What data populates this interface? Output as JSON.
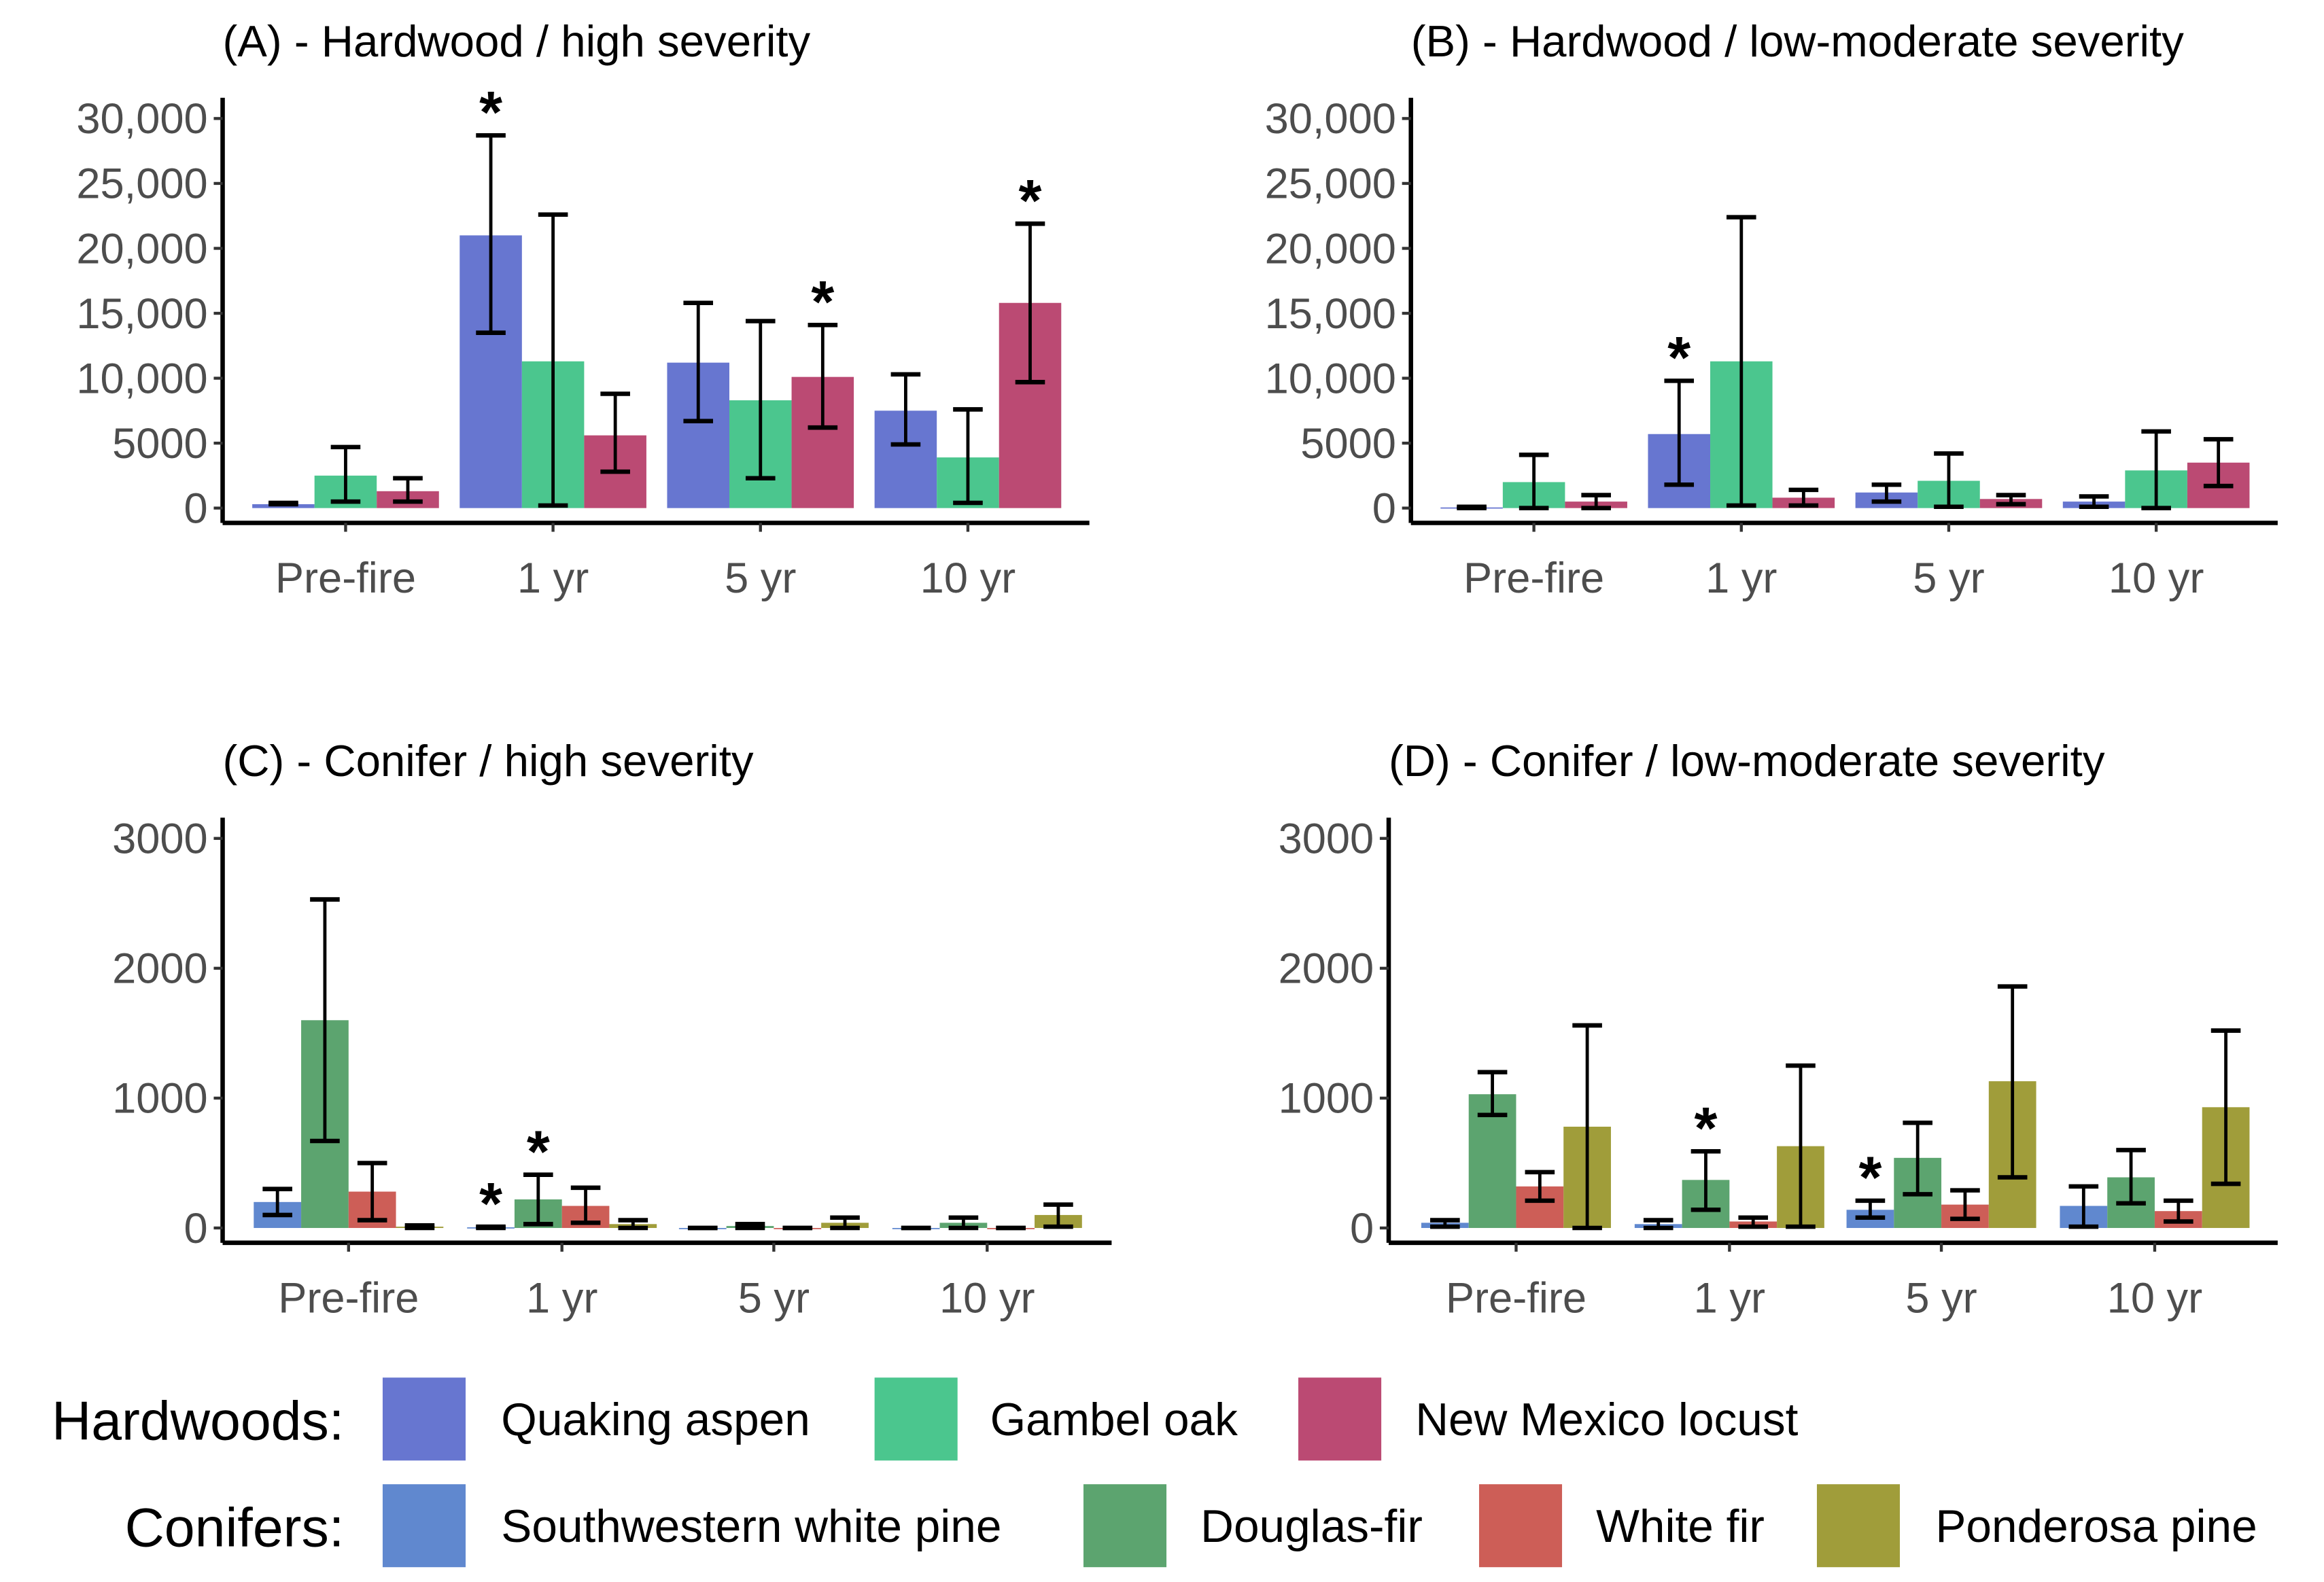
{
  "chart_data": [
    {
      "type": "bar",
      "title": "(A) - Hardwood / high severity",
      "categories": [
        "Pre-fire",
        "1 yr",
        "5 yr",
        "10 yr"
      ],
      "ylim": [
        0,
        30000
      ],
      "yticks": [
        0,
        5000,
        10000,
        15000,
        20000,
        25000,
        30000
      ],
      "ytick_labels": [
        "0",
        "5000",
        "10,000",
        "15,000",
        "20,000",
        "25,000",
        "30,000"
      ],
      "series": [
        {
          "name": "Quaking aspen",
          "values": [
            300,
            21000,
            11200,
            7500
          ],
          "err_low": [
            300,
            13500,
            6700,
            4900
          ],
          "err_high": [
            400,
            28700,
            15800,
            10300
          ],
          "signif": [
            false,
            true,
            false,
            false
          ]
        },
        {
          "name": "Gambel oak",
          "values": [
            2500,
            11300,
            8300,
            3900
          ],
          "err_low": [
            500,
            200,
            2300,
            400
          ],
          "err_high": [
            4700,
            22600,
            14400,
            7600
          ],
          "signif": [
            false,
            false,
            false,
            false
          ]
        },
        {
          "name": "New Mexico locust",
          "values": [
            1300,
            5600,
            10100,
            15800
          ],
          "err_low": [
            500,
            2800,
            6200,
            9700
          ],
          "err_high": [
            2300,
            8800,
            14100,
            21900
          ],
          "signif": [
            false,
            false,
            true,
            true
          ]
        }
      ]
    },
    {
      "type": "bar",
      "title": "(B) - Hardwood / low-moderate severity",
      "categories": [
        "Pre-fire",
        "1 yr",
        "5 yr",
        "10 yr"
      ],
      "ylim": [
        0,
        30000
      ],
      "yticks": [
        0,
        5000,
        10000,
        15000,
        20000,
        25000,
        30000
      ],
      "ytick_labels": [
        "0",
        "5000",
        "10,000",
        "15,000",
        "20,000",
        "25,000",
        "30,000"
      ],
      "series": [
        {
          "name": "Quaking aspen",
          "values": [
            50,
            5700,
            1200,
            500
          ],
          "err_low": [
            0,
            1800,
            500,
            100
          ],
          "err_high": [
            100,
            9800,
            1800,
            900
          ],
          "signif": [
            false,
            true,
            false,
            false
          ]
        },
        {
          "name": "Gambel oak",
          "values": [
            2000,
            11300,
            2100,
            2900
          ],
          "err_low": [
            0,
            200,
            100,
            0
          ],
          "err_high": [
            4100,
            22400,
            4200,
            5900
          ],
          "signif": [
            false,
            false,
            false,
            false
          ]
        },
        {
          "name": "New Mexico locust",
          "values": [
            500,
            800,
            700,
            3500
          ],
          "err_low": [
            0,
            200,
            300,
            1700
          ],
          "err_high": [
            1000,
            1400,
            1000,
            5300
          ],
          "signif": [
            false,
            false,
            false,
            false
          ]
        }
      ]
    },
    {
      "type": "bar",
      "title": "(C) - Conifer / high severity",
      "categories": [
        "Pre-fire",
        "1 yr",
        "5 yr",
        "10 yr"
      ],
      "ylim": [
        0,
        3000
      ],
      "yticks": [
        0,
        1000,
        2000,
        3000
      ],
      "ytick_labels": [
        "0",
        "1000",
        "2000",
        "3000"
      ],
      "series": [
        {
          "name": "Southwestern white pine",
          "values": [
            200,
            5,
            0,
            0
          ],
          "err_low": [
            100,
            0,
            0,
            0
          ],
          "err_high": [
            300,
            10,
            0,
            0
          ],
          "signif": [
            false,
            true,
            false,
            false
          ]
        },
        {
          "name": "Douglas-fir",
          "values": [
            1600,
            220,
            15,
            40
          ],
          "err_low": [
            670,
            30,
            0,
            0
          ],
          "err_high": [
            2530,
            410,
            30,
            80
          ],
          "signif": [
            false,
            true,
            false,
            false
          ]
        },
        {
          "name": "White fir",
          "values": [
            280,
            170,
            0,
            0
          ],
          "err_low": [
            60,
            40,
            0,
            0
          ],
          "err_high": [
            500,
            310,
            0,
            0
          ],
          "signif": [
            false,
            false,
            false,
            false
          ]
        },
        {
          "name": "Ponderosa pine",
          "values": [
            10,
            30,
            40,
            100
          ],
          "err_low": [
            0,
            0,
            0,
            10
          ],
          "err_high": [
            20,
            60,
            80,
            180
          ],
          "signif": [
            false,
            false,
            false,
            false
          ]
        }
      ]
    },
    {
      "type": "bar",
      "title": "(D) - Conifer / low-moderate severity",
      "categories": [
        "Pre-fire",
        "1 yr",
        "5 yr",
        "10 yr"
      ],
      "ylim": [
        0,
        3000
      ],
      "yticks": [
        0,
        1000,
        2000,
        3000
      ],
      "ytick_labels": [
        "0",
        "1000",
        "2000",
        "3000"
      ],
      "series": [
        {
          "name": "Southwestern white pine",
          "values": [
            40,
            30,
            140,
            170
          ],
          "err_low": [
            10,
            0,
            80,
            10
          ],
          "err_high": [
            60,
            60,
            210,
            320
          ],
          "signif": [
            false,
            false,
            true,
            false
          ]
        },
        {
          "name": "Douglas-fir",
          "values": [
            1030,
            370,
            540,
            390
          ],
          "err_low": [
            870,
            140,
            260,
            190
          ],
          "err_high": [
            1200,
            590,
            810,
            600
          ],
          "signif": [
            false,
            true,
            false,
            false
          ]
        },
        {
          "name": "White fir",
          "values": [
            320,
            50,
            180,
            130
          ],
          "err_low": [
            210,
            10,
            70,
            50
          ],
          "err_high": [
            430,
            80,
            290,
            210
          ],
          "signif": [
            false,
            false,
            false,
            false
          ]
        },
        {
          "name": "Ponderosa pine",
          "values": [
            780,
            630,
            1130,
            930
          ],
          "err_low": [
            0,
            10,
            390,
            340
          ],
          "err_high": [
            1560,
            1250,
            1860,
            1520
          ],
          "signif": [
            false,
            false,
            false,
            false
          ]
        }
      ]
    }
  ],
  "significance_marker": "*",
  "legend": {
    "hardwoods_label": "Hardwoods:",
    "conifers_label": "Conifers:",
    "hardwoods": [
      {
        "name": "Quaking aspen",
        "color": "#6776d0"
      },
      {
        "name": "Gambel oak",
        "color": "#4bc68e"
      },
      {
        "name": "New Mexico locust",
        "color": "#bb4a73"
      }
    ],
    "conifers": [
      {
        "name": "Southwestern white pine",
        "color": "#6088cf"
      },
      {
        "name": "Douglas-fir",
        "color": "#5ca46f"
      },
      {
        "name": "White fir",
        "color": "#cd5e57"
      },
      {
        "name": "Ponderosa pine",
        "color": "#a09d3a"
      }
    ]
  }
}
